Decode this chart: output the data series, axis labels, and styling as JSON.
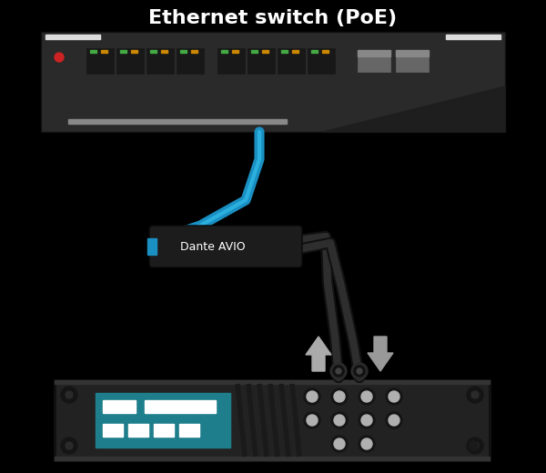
{
  "title": "Ethernet switch (PoE)",
  "title_fontsize": 16,
  "title_color": "#ffffff",
  "bg_color": "#000000",
  "cable_blue": "#1a8fc1",
  "avio_label": "Dante AVIO",
  "avio_label_color": "#ffffff",
  "arrow_up_color": "#aaaaaa",
  "arrow_down_color": "#999999",
  "teal_color": "#1e7e8c",
  "led_green": "#44aa44",
  "led_orange": "#cc8800",
  "red_dot": "#cc2222"
}
